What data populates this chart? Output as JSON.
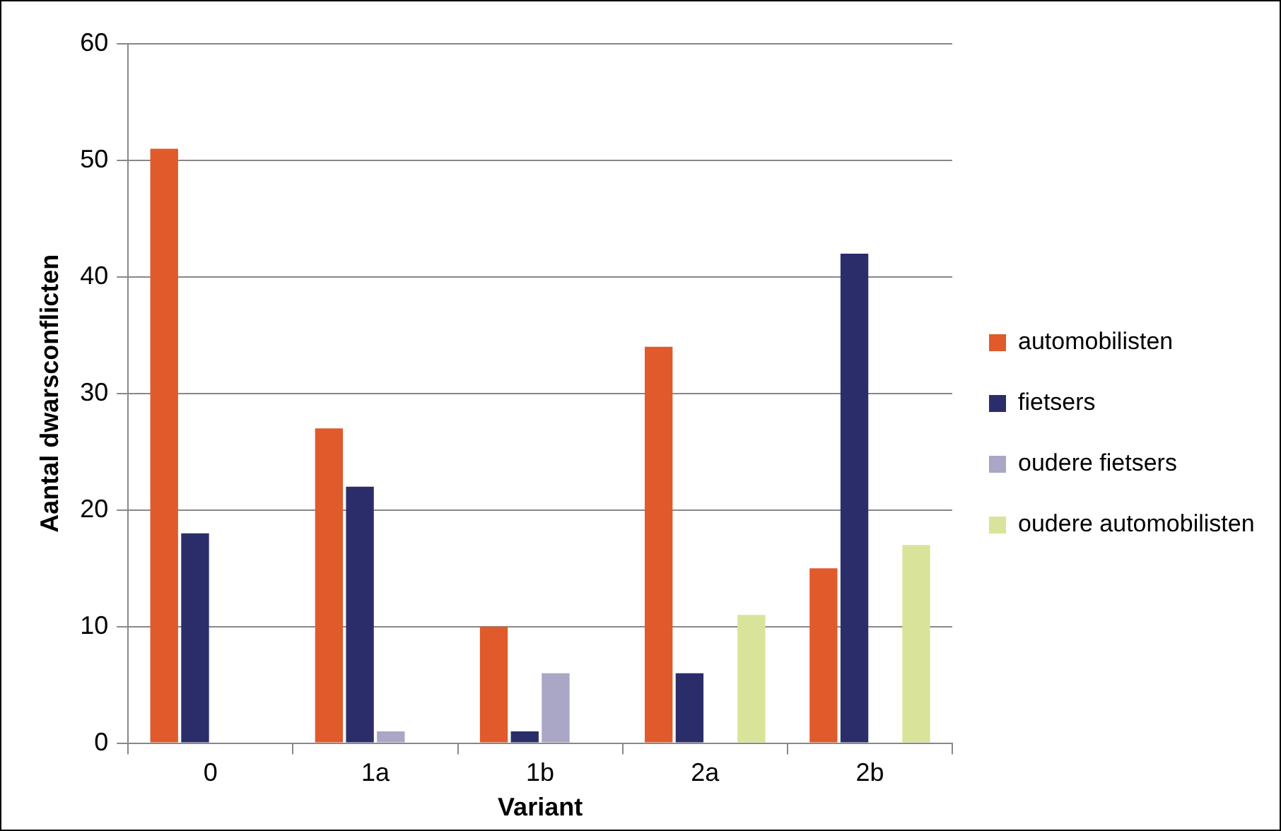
{
  "chart_data": {
    "type": "bar",
    "xlabel": "Variant",
    "ylabel": "Aantal dwarsconflicten",
    "categories": [
      "0",
      "1a",
      "1b",
      "2a",
      "2b"
    ],
    "series": [
      {
        "name": "automobilisten",
        "color": "#e05a2b",
        "values": [
          51,
          27,
          10,
          34,
          15
        ]
      },
      {
        "name": "fietsers",
        "color": "#2b2d6b",
        "values": [
          18,
          22,
          1,
          6,
          42
        ]
      },
      {
        "name": "oudere fietsers",
        "color": "#a9a6c6",
        "values": [
          null,
          1,
          6,
          null,
          null
        ]
      },
      {
        "name": "oudere automobilisten",
        "color": "#d9e39a",
        "values": [
          null,
          null,
          null,
          11,
          17
        ]
      }
    ],
    "ylim": [
      0,
      60
    ],
    "yticks": [
      0,
      10,
      20,
      30,
      40,
      50,
      60
    ],
    "grid": "y",
    "legend": "right"
  }
}
